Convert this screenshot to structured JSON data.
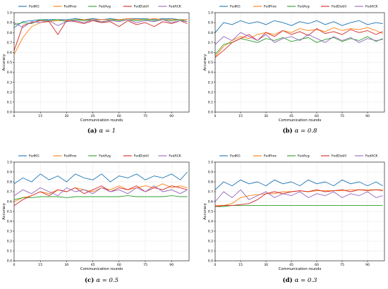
{
  "chart_data": [
    {
      "type": "line",
      "caption": {
        "label": "(a)",
        "param": "α = 1"
      },
      "xlabel": "Communication rounds",
      "ylabel": "Accuracy",
      "xlim": [
        0,
        100
      ],
      "ylim": [
        0,
        1.0
      ],
      "xticks": [
        0,
        15,
        30,
        45,
        60,
        75,
        90
      ],
      "yticks": [
        0.0,
        0.1,
        0.2,
        0.3,
        0.4,
        0.5,
        0.6,
        0.7,
        0.8,
        0.9,
        1.0
      ],
      "grid": true,
      "legend_position": "top",
      "x": [
        0,
        5,
        10,
        15,
        20,
        25,
        30,
        35,
        40,
        45,
        50,
        55,
        60,
        65,
        70,
        75,
        80,
        85,
        90,
        95,
        99
      ],
      "series": [
        {
          "name": "FedKG",
          "color": "#1f77b4",
          "values": [
            0.85,
            0.91,
            0.92,
            0.93,
            0.93,
            0.93,
            0.93,
            0.94,
            0.93,
            0.94,
            0.93,
            0.94,
            0.93,
            0.94,
            0.94,
            0.94,
            0.93,
            0.94,
            0.94,
            0.93,
            0.93
          ]
        },
        {
          "name": "FedProx",
          "color": "#ff7f0e",
          "values": [
            0.58,
            0.75,
            0.86,
            0.9,
            0.91,
            0.92,
            0.92,
            0.93,
            0.93,
            0.93,
            0.93,
            0.93,
            0.93,
            0.94,
            0.93,
            0.93,
            0.94,
            0.93,
            0.93,
            0.93,
            0.93
          ]
        },
        {
          "name": "FedAvg",
          "color": "#2ca02c",
          "values": [
            0.88,
            0.9,
            0.89,
            0.93,
            0.92,
            0.93,
            0.91,
            0.93,
            0.92,
            0.93,
            0.9,
            0.93,
            0.92,
            0.93,
            0.92,
            0.93,
            0.92,
            0.93,
            0.92,
            0.93,
            0.91
          ]
        },
        {
          "name": "FedDistill",
          "color": "#d62728",
          "values": [
            0.62,
            0.87,
            0.9,
            0.92,
            0.91,
            0.78,
            0.92,
            0.91,
            0.89,
            0.92,
            0.9,
            0.91,
            0.86,
            0.92,
            0.88,
            0.9,
            0.86,
            0.91,
            0.89,
            0.92,
            0.89
          ]
        },
        {
          "name": "FedACK",
          "color": "#9467bd",
          "values": [
            0.9,
            0.85,
            0.91,
            0.9,
            0.92,
            0.87,
            0.91,
            0.92,
            0.9,
            0.93,
            0.91,
            0.92,
            0.91,
            0.93,
            0.9,
            0.92,
            0.91,
            0.93,
            0.9,
            0.92,
            0.91
          ]
        }
      ]
    },
    {
      "type": "line",
      "caption": {
        "label": "(b)",
        "param": "α = 0.8"
      },
      "xlabel": "Communication rounds",
      "ylabel": "Accuracy",
      "xlim": [
        0,
        100
      ],
      "ylim": [
        0,
        1.0
      ],
      "xticks": [
        0,
        15,
        30,
        45,
        60,
        75,
        90
      ],
      "yticks": [
        0.0,
        0.1,
        0.2,
        0.3,
        0.4,
        0.5,
        0.6,
        0.7,
        0.8,
        0.9,
        1.0
      ],
      "grid": true,
      "legend_position": "top",
      "x": [
        0,
        5,
        10,
        15,
        20,
        25,
        30,
        35,
        40,
        45,
        50,
        55,
        60,
        65,
        70,
        75,
        80,
        85,
        90,
        95,
        99
      ],
      "series": [
        {
          "name": "FedKG",
          "color": "#1f77b4",
          "values": [
            0.8,
            0.9,
            0.88,
            0.92,
            0.89,
            0.91,
            0.88,
            0.92,
            0.9,
            0.87,
            0.91,
            0.89,
            0.92,
            0.88,
            0.91,
            0.87,
            0.9,
            0.92,
            0.88,
            0.9,
            0.89
          ]
        },
        {
          "name": "FedProx",
          "color": "#ff7f0e",
          "values": [
            0.56,
            0.66,
            0.72,
            0.76,
            0.74,
            0.78,
            0.8,
            0.78,
            0.82,
            0.8,
            0.84,
            0.82,
            0.83,
            0.81,
            0.85,
            0.82,
            0.84,
            0.83,
            0.85,
            0.82,
            0.79
          ]
        },
        {
          "name": "FedAvg",
          "color": "#2ca02c",
          "values": [
            0.58,
            0.68,
            0.7,
            0.74,
            0.72,
            0.7,
            0.74,
            0.72,
            0.75,
            0.71,
            0.73,
            0.75,
            0.7,
            0.73,
            0.75,
            0.71,
            0.74,
            0.72,
            0.76,
            0.71,
            0.74
          ]
        },
        {
          "name": "FedDistill",
          "color": "#d62728",
          "values": [
            0.55,
            0.62,
            0.7,
            0.74,
            0.78,
            0.72,
            0.8,
            0.76,
            0.82,
            0.78,
            0.81,
            0.77,
            0.84,
            0.79,
            0.81,
            0.78,
            0.83,
            0.8,
            0.82,
            0.78,
            0.81
          ]
        },
        {
          "name": "FedACK",
          "color": "#9467bd",
          "values": [
            0.68,
            0.76,
            0.72,
            0.8,
            0.76,
            0.72,
            0.78,
            0.7,
            0.74,
            0.76,
            0.72,
            0.78,
            0.74,
            0.7,
            0.76,
            0.72,
            0.75,
            0.7,
            0.74,
            0.72,
            0.73
          ]
        }
      ]
    },
    {
      "type": "line",
      "caption": {
        "label": "(c)",
        "param": "α = 0.5"
      },
      "xlabel": "Communication rounds",
      "ylabel": "Accuracy",
      "xlim": [
        0,
        100
      ],
      "ylim": [
        0,
        1.0
      ],
      "xticks": [
        0,
        15,
        30,
        45,
        60,
        75,
        90
      ],
      "yticks": [
        0.0,
        0.1,
        0.2,
        0.3,
        0.4,
        0.5,
        0.6,
        0.7,
        0.8,
        0.9,
        1.0
      ],
      "grid": true,
      "legend_position": "top",
      "x": [
        0,
        5,
        10,
        15,
        20,
        25,
        30,
        35,
        40,
        45,
        50,
        55,
        60,
        65,
        70,
        75,
        80,
        85,
        90,
        95,
        99
      ],
      "series": [
        {
          "name": "FedKG",
          "color": "#1f77b4",
          "values": [
            0.78,
            0.84,
            0.8,
            0.88,
            0.82,
            0.86,
            0.8,
            0.88,
            0.84,
            0.82,
            0.88,
            0.8,
            0.86,
            0.84,
            0.88,
            0.82,
            0.86,
            0.84,
            0.88,
            0.82,
            0.9
          ]
        },
        {
          "name": "FedProx",
          "color": "#ff7f0e",
          "values": [
            0.6,
            0.64,
            0.66,
            0.7,
            0.68,
            0.72,
            0.7,
            0.74,
            0.72,
            0.7,
            0.74,
            0.72,
            0.76,
            0.72,
            0.74,
            0.76,
            0.74,
            0.78,
            0.74,
            0.76,
            0.74
          ]
        },
        {
          "name": "FedAvg",
          "color": "#2ca02c",
          "values": [
            0.62,
            0.64,
            0.64,
            0.65,
            0.65,
            0.65,
            0.64,
            0.65,
            0.65,
            0.65,
            0.65,
            0.65,
            0.65,
            0.66,
            0.65,
            0.65,
            0.65,
            0.65,
            0.66,
            0.65,
            0.65
          ]
        },
        {
          "name": "FedDistill",
          "color": "#d62728",
          "values": [
            0.56,
            0.62,
            0.66,
            0.7,
            0.66,
            0.72,
            0.7,
            0.74,
            0.68,
            0.72,
            0.76,
            0.7,
            0.74,
            0.72,
            0.76,
            0.7,
            0.74,
            0.72,
            0.76,
            0.74,
            0.72
          ]
        },
        {
          "name": "FedACK",
          "color": "#9467bd",
          "values": [
            0.66,
            0.72,
            0.68,
            0.74,
            0.7,
            0.66,
            0.74,
            0.7,
            0.72,
            0.68,
            0.74,
            0.7,
            0.72,
            0.68,
            0.74,
            0.7,
            0.76,
            0.7,
            0.72,
            0.68,
            0.72
          ]
        }
      ]
    },
    {
      "type": "line",
      "caption": {
        "label": "(d)",
        "param": "α = 0.3"
      },
      "xlabel": "Communication rounds",
      "ylabel": "Accuracy",
      "xlim": [
        0,
        100
      ],
      "ylim": [
        0,
        1.0
      ],
      "xticks": [
        0,
        15,
        30,
        45,
        60,
        75,
        90
      ],
      "yticks": [
        0.0,
        0.1,
        0.2,
        0.3,
        0.4,
        0.5,
        0.6,
        0.7,
        0.8,
        0.9,
        1.0
      ],
      "grid": true,
      "legend_position": "top",
      "x": [
        0,
        5,
        10,
        15,
        20,
        25,
        30,
        35,
        40,
        45,
        50,
        55,
        60,
        65,
        70,
        75,
        80,
        85,
        90,
        95,
        99
      ],
      "series": [
        {
          "name": "FedKG",
          "color": "#1f77b4",
          "values": [
            0.72,
            0.8,
            0.76,
            0.82,
            0.78,
            0.8,
            0.76,
            0.82,
            0.78,
            0.8,
            0.76,
            0.82,
            0.78,
            0.8,
            0.76,
            0.82,
            0.78,
            0.8,
            0.76,
            0.8,
            0.76
          ]
        },
        {
          "name": "FedProx",
          "color": "#ff7f0e",
          "values": [
            0.56,
            0.56,
            0.58,
            0.64,
            0.66,
            0.67,
            0.68,
            0.68,
            0.7,
            0.7,
            0.71,
            0.7,
            0.71,
            0.71,
            0.71,
            0.71,
            0.72,
            0.72,
            0.72,
            0.72,
            0.72
          ]
        },
        {
          "name": "FedAvg",
          "color": "#2ca02c",
          "values": [
            0.55,
            0.55,
            0.56,
            0.56,
            0.56,
            0.56,
            0.56,
            0.56,
            0.56,
            0.56,
            0.56,
            0.56,
            0.56,
            0.56,
            0.56,
            0.56,
            0.56,
            0.56,
            0.56,
            0.56,
            0.56
          ]
        },
        {
          "name": "FedDistill",
          "color": "#d62728",
          "values": [
            0.55,
            0.56,
            0.56,
            0.57,
            0.58,
            0.62,
            0.68,
            0.7,
            0.68,
            0.7,
            0.71,
            0.7,
            0.72,
            0.7,
            0.71,
            0.72,
            0.7,
            0.72,
            0.71,
            0.72,
            0.71
          ]
        },
        {
          "name": "FedACK",
          "color": "#9467bd",
          "values": [
            0.6,
            0.7,
            0.64,
            0.72,
            0.62,
            0.66,
            0.7,
            0.64,
            0.68,
            0.66,
            0.7,
            0.64,
            0.68,
            0.66,
            0.7,
            0.64,
            0.68,
            0.66,
            0.7,
            0.64,
            0.66
          ]
        }
      ]
    }
  ]
}
